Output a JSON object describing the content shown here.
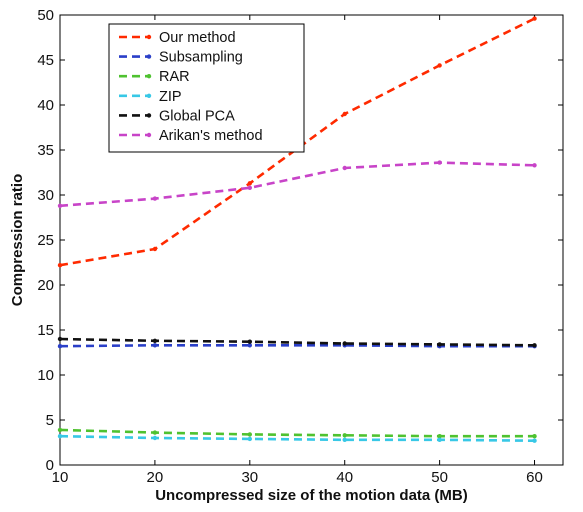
{
  "chart_data": {
    "type": "line",
    "xlabel": "Uncompressed size of  the motion data (MB)",
    "ylabel": "Compression ratio",
    "xlim": [
      10,
      63
    ],
    "ylim": [
      0,
      50
    ],
    "xticks": [
      10,
      20,
      30,
      40,
      50,
      60
    ],
    "yticks": [
      0,
      5,
      10,
      15,
      20,
      25,
      30,
      35,
      40,
      45,
      50
    ],
    "grid": false,
    "legend_position": "top-left",
    "line_style": "dashed",
    "series": [
      {
        "name": "Our method",
        "color": "#ff2a00",
        "x": [
          10,
          20,
          30,
          40,
          50,
          60
        ],
        "y": [
          22.2,
          24.0,
          31.3,
          39.0,
          44.4,
          49.6
        ]
      },
      {
        "name": "Subsampling",
        "color": "#2a3fc8",
        "x": [
          10,
          20,
          30,
          40,
          50,
          60
        ],
        "y": [
          13.2,
          13.3,
          13.3,
          13.3,
          13.2,
          13.2
        ]
      },
      {
        "name": "RAR",
        "color": "#4fc230",
        "x": [
          10,
          20,
          30,
          40,
          50,
          60
        ],
        "y": [
          3.9,
          3.6,
          3.4,
          3.3,
          3.2,
          3.2
        ]
      },
      {
        "name": "ZIP",
        "color": "#38c8e6",
        "x": [
          10,
          20,
          30,
          40,
          50,
          60
        ],
        "y": [
          3.2,
          3.0,
          2.9,
          2.8,
          2.8,
          2.7
        ]
      },
      {
        "name": "Global PCA",
        "color": "#111111",
        "x": [
          10,
          20,
          30,
          40,
          50,
          60
        ],
        "y": [
          14.0,
          13.8,
          13.7,
          13.5,
          13.4,
          13.3
        ]
      },
      {
        "name": "Arikan's method",
        "color": "#c844c8",
        "x": [
          10,
          20,
          30,
          40,
          50,
          60
        ],
        "y": [
          28.8,
          29.6,
          30.8,
          33.0,
          33.6,
          33.3
        ]
      }
    ]
  }
}
